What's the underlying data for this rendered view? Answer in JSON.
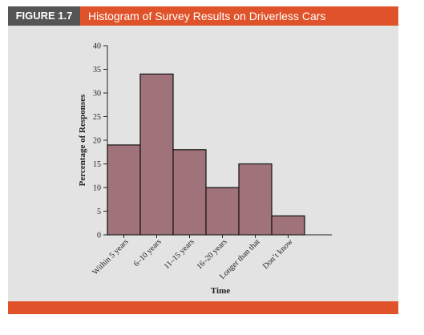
{
  "figure": {
    "label": "FIGURE 1.7",
    "title": "Histogram of Survey Results on Driverless Cars"
  },
  "colors": {
    "accent": "#e0532a",
    "label_bg": "#555555",
    "panel_bg": "#e3e3e3",
    "bar_fill": "#a0737a"
  },
  "chart_data": {
    "type": "bar",
    "title": "",
    "xlabel": "Time",
    "ylabel": "Percentage of Responses",
    "categories": [
      "Within 5 years",
      "6–10 years",
      "11–15 years",
      "16–20 years",
      "Longer than that",
      "Don’t know"
    ],
    "values": [
      19,
      34,
      18,
      10,
      15,
      4
    ],
    "ylim": [
      0,
      40
    ],
    "yticks": [
      0,
      5,
      10,
      15,
      20,
      25,
      30,
      35,
      40
    ],
    "grid": false,
    "legend": "none"
  }
}
